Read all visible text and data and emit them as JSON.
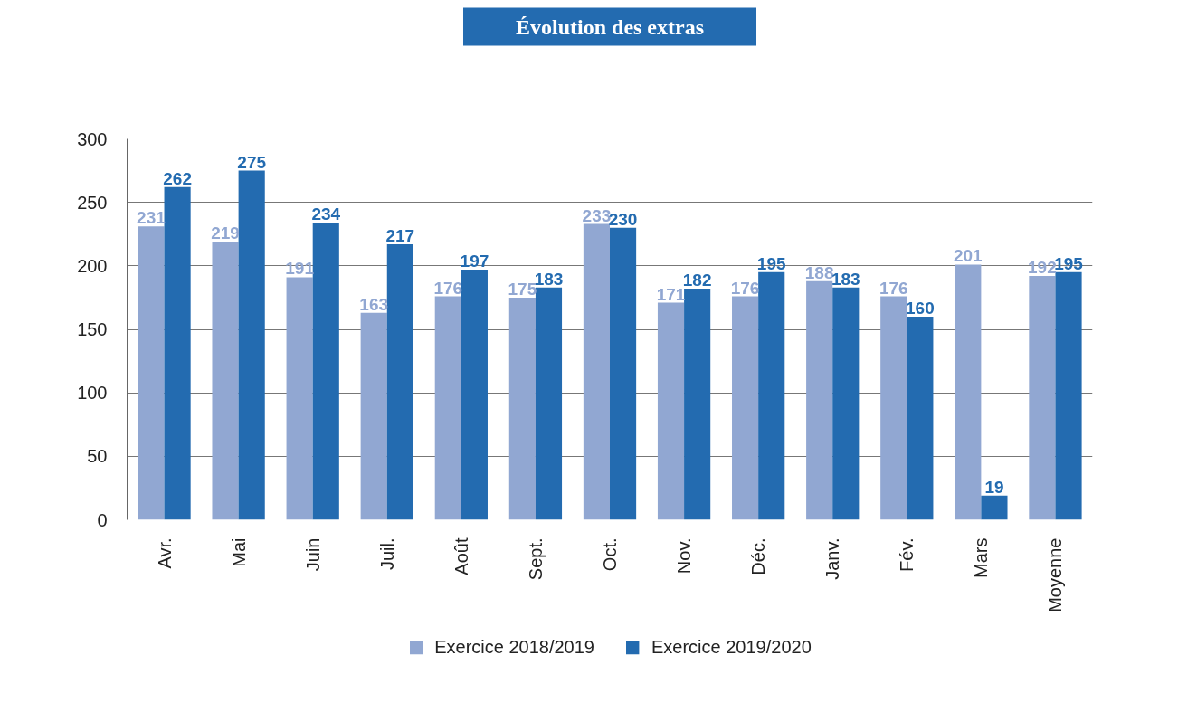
{
  "chart_data": {
    "type": "bar",
    "title": "Évolution des extras",
    "categories": [
      "Avr.",
      "Mai",
      "Juin",
      "Juil.",
      "Août",
      "Sept.",
      "Oct.",
      "Nov.",
      "Déc.",
      "Janv.",
      "Fév.",
      "Mars",
      "Moyenne"
    ],
    "series": [
      {
        "name": "Exercice 2018/2019",
        "color": "#91a7d2",
        "values": [
          231,
          219,
          191,
          163,
          176,
          175,
          233,
          171,
          176,
          188,
          176,
          201,
          192
        ]
      },
      {
        "name": "Exercice 2019/2020",
        "color": "#236bb0",
        "values": [
          262,
          275,
          234,
          217,
          197,
          183,
          230,
          182,
          195,
          183,
          160,
          19,
          195
        ]
      }
    ],
    "ylim": [
      0,
      300
    ],
    "yticks": [
      0,
      50,
      100,
      150,
      200,
      250,
      300
    ],
    "grid": "y",
    "legend": "bottom",
    "data_labels": true
  }
}
